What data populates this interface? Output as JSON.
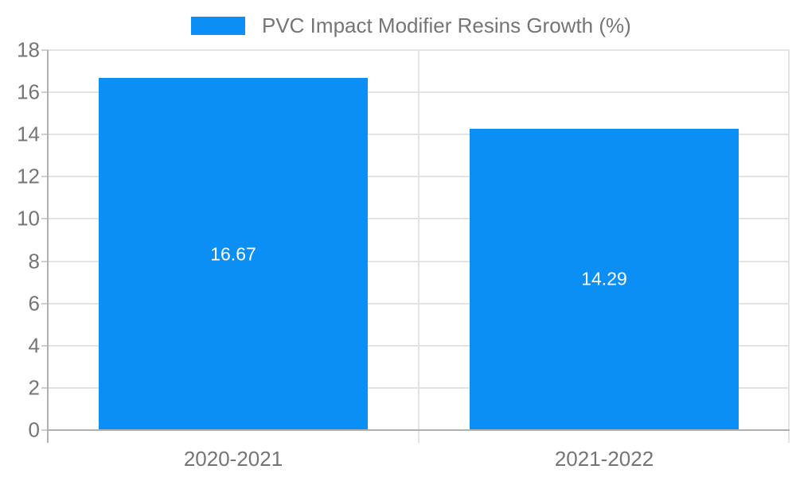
{
  "chart_data": {
    "type": "bar",
    "title": "",
    "legend": {
      "position": "top",
      "label": "PVC Impact Modifier Resins Growth (%)"
    },
    "categories": [
      "2020-2021",
      "2021-2022"
    ],
    "series": [
      {
        "name": "PVC Impact Modifier Resins Growth (%)",
        "values": [
          16.67,
          14.29
        ],
        "color": "#0b8ff5"
      }
    ],
    "value_labels": [
      "16.67",
      "14.29"
    ],
    "xlabel": "",
    "ylabel": "",
    "ylim": [
      0,
      18
    ],
    "yticks": [
      0,
      2,
      4,
      6,
      8,
      10,
      12,
      14,
      16,
      18
    ],
    "grid": true,
    "colors": {
      "bar": "#0b8ff5",
      "grid": "#e3e3e3",
      "axis": "#b0b0b0",
      "tick_mark": "#cfcfcf",
      "tick_text": "#757575",
      "value_label": "#ffffff",
      "background": "#ffffff"
    }
  }
}
